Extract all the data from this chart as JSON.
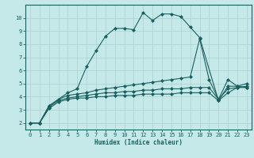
{
  "xlabel": "Humidex (Indice chaleur)",
  "bg_color": "#c5e8e8",
  "grid_color": "#b0d4d4",
  "line_color": "#1a6060",
  "xlim": [
    -0.5,
    23.5
  ],
  "ylim": [
    1.5,
    11.0
  ],
  "yticks": [
    2,
    3,
    4,
    5,
    6,
    7,
    8,
    9,
    10
  ],
  "xticks": [
    0,
    1,
    2,
    3,
    4,
    5,
    6,
    7,
    8,
    9,
    10,
    11,
    12,
    13,
    14,
    15,
    16,
    17,
    18,
    19,
    20,
    21,
    22,
    23
  ],
  "lines": [
    {
      "x": [
        0,
        1,
        2,
        3,
        4,
        5,
        6,
        7,
        8,
        9,
        10,
        11,
        12,
        13,
        14,
        15,
        16,
        17,
        18,
        20,
        21,
        22,
        23
      ],
      "y": [
        2.0,
        2.0,
        3.3,
        3.8,
        4.3,
        4.6,
        6.3,
        7.5,
        8.6,
        9.2,
        9.2,
        9.1,
        10.4,
        9.8,
        10.3,
        10.3,
        10.1,
        9.3,
        8.5,
        3.7,
        4.8,
        4.8,
        4.7
      ],
      "marker": true
    },
    {
      "x": [
        0,
        1,
        2,
        3,
        4,
        5,
        6,
        7,
        8,
        9,
        10,
        11,
        12,
        13,
        14,
        15,
        16,
        17,
        18,
        19,
        20,
        21,
        22,
        23
      ],
      "y": [
        2.0,
        2.0,
        3.3,
        3.8,
        4.1,
        4.2,
        4.3,
        4.5,
        4.6,
        4.7,
        4.8,
        4.9,
        5.0,
        5.1,
        5.2,
        5.3,
        5.4,
        5.5,
        8.4,
        5.3,
        3.8,
        5.3,
        4.8,
        5.0
      ],
      "marker": true
    },
    {
      "x": [
        0,
        1,
        2,
        3,
        4,
        5,
        6,
        7,
        8,
        9,
        10,
        11,
        12,
        13,
        14,
        15,
        16,
        17,
        18,
        19,
        20,
        21,
        22,
        23
      ],
      "y": [
        2.0,
        2.0,
        3.2,
        3.7,
        3.9,
        4.0,
        4.1,
        4.2,
        4.3,
        4.3,
        4.4,
        4.4,
        4.5,
        4.5,
        4.6,
        4.6,
        4.6,
        4.7,
        4.7,
        4.7,
        3.8,
        4.6,
        4.7,
        4.8
      ],
      "marker": true
    },
    {
      "x": [
        0,
        1,
        2,
        3,
        4,
        5,
        6,
        7,
        8,
        9,
        10,
        11,
        12,
        13,
        14,
        15,
        16,
        17,
        18,
        19,
        20,
        21,
        22,
        23
      ],
      "y": [
        2.0,
        2.0,
        3.1,
        3.6,
        3.8,
        3.9,
        3.9,
        4.0,
        4.0,
        4.1,
        4.1,
        4.1,
        4.2,
        4.2,
        4.2,
        4.2,
        4.3,
        4.3,
        4.3,
        4.3,
        3.7,
        4.3,
        4.7,
        4.7
      ],
      "marker": true
    }
  ]
}
